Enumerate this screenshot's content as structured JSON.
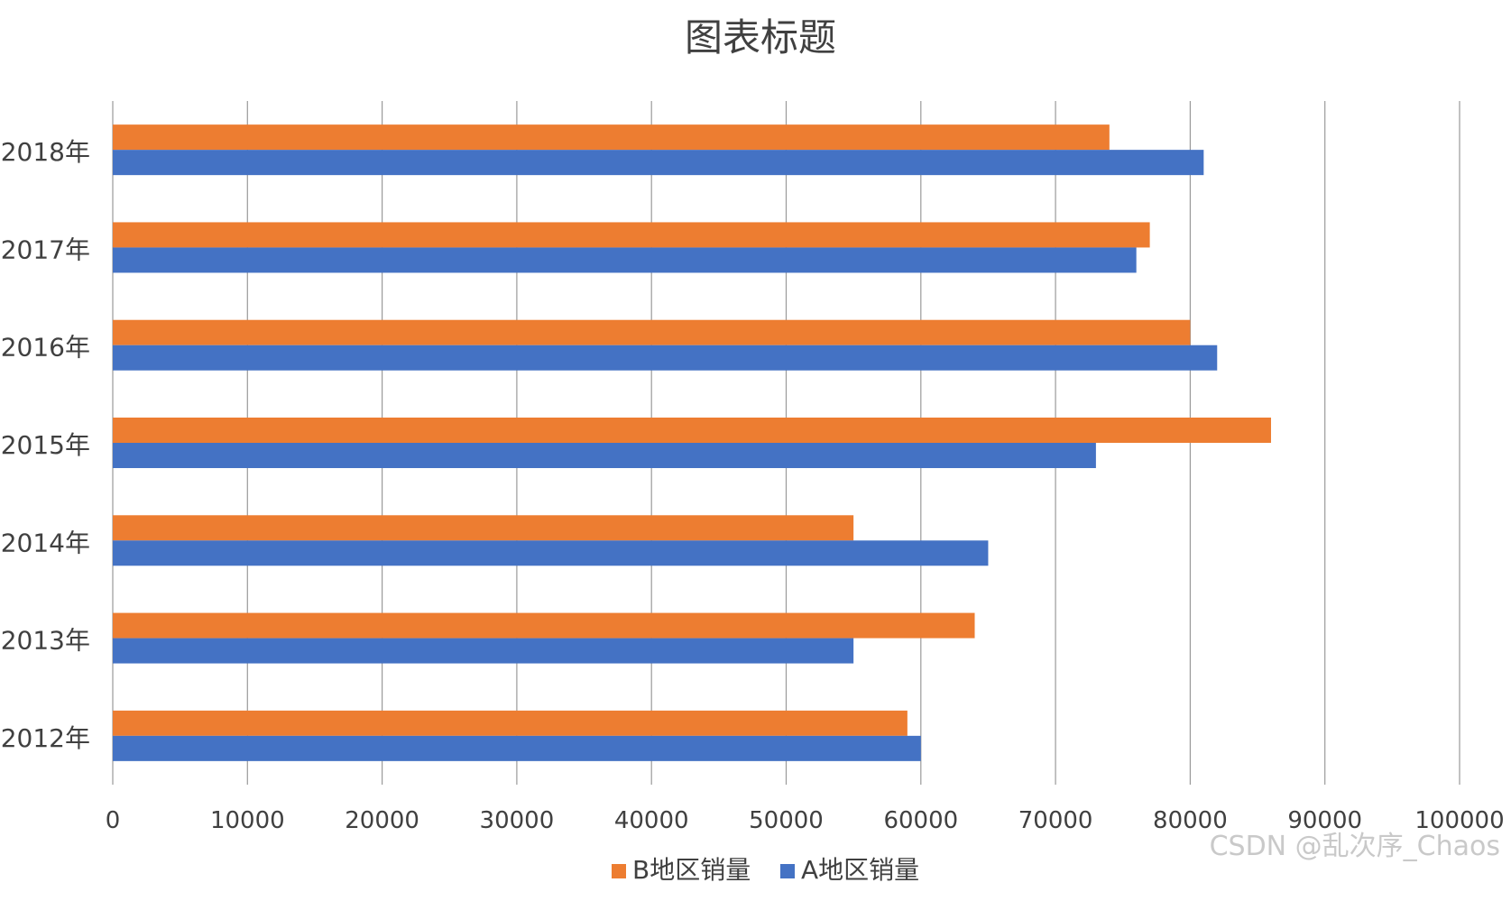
{
  "chart_data": {
    "type": "bar",
    "orientation": "horizontal",
    "title": "图表标题",
    "categories": [
      "2012年",
      "2013年",
      "2014年",
      "2015年",
      "2016年",
      "2017年",
      "2018年"
    ],
    "series": [
      {
        "name": "B地区销量",
        "color": "#ED7D31",
        "values": [
          59000,
          64000,
          55000,
          86000,
          80000,
          77000,
          74000
        ]
      },
      {
        "name": "A地区销量",
        "color": "#4472C4",
        "values": [
          60000,
          55000,
          65000,
          73000,
          82000,
          76000,
          81000
        ]
      }
    ],
    "xlim": [
      0,
      100000
    ],
    "x_ticks": [
      "0",
      "10000",
      "20000",
      "30000",
      "40000",
      "50000",
      "60000",
      "70000",
      "80000",
      "90000",
      "100000"
    ],
    "grid": true,
    "legend_position": "bottom",
    "gridline_color": "#9a9a9a"
  },
  "watermark": "CSDN @乱次序_Chaos"
}
